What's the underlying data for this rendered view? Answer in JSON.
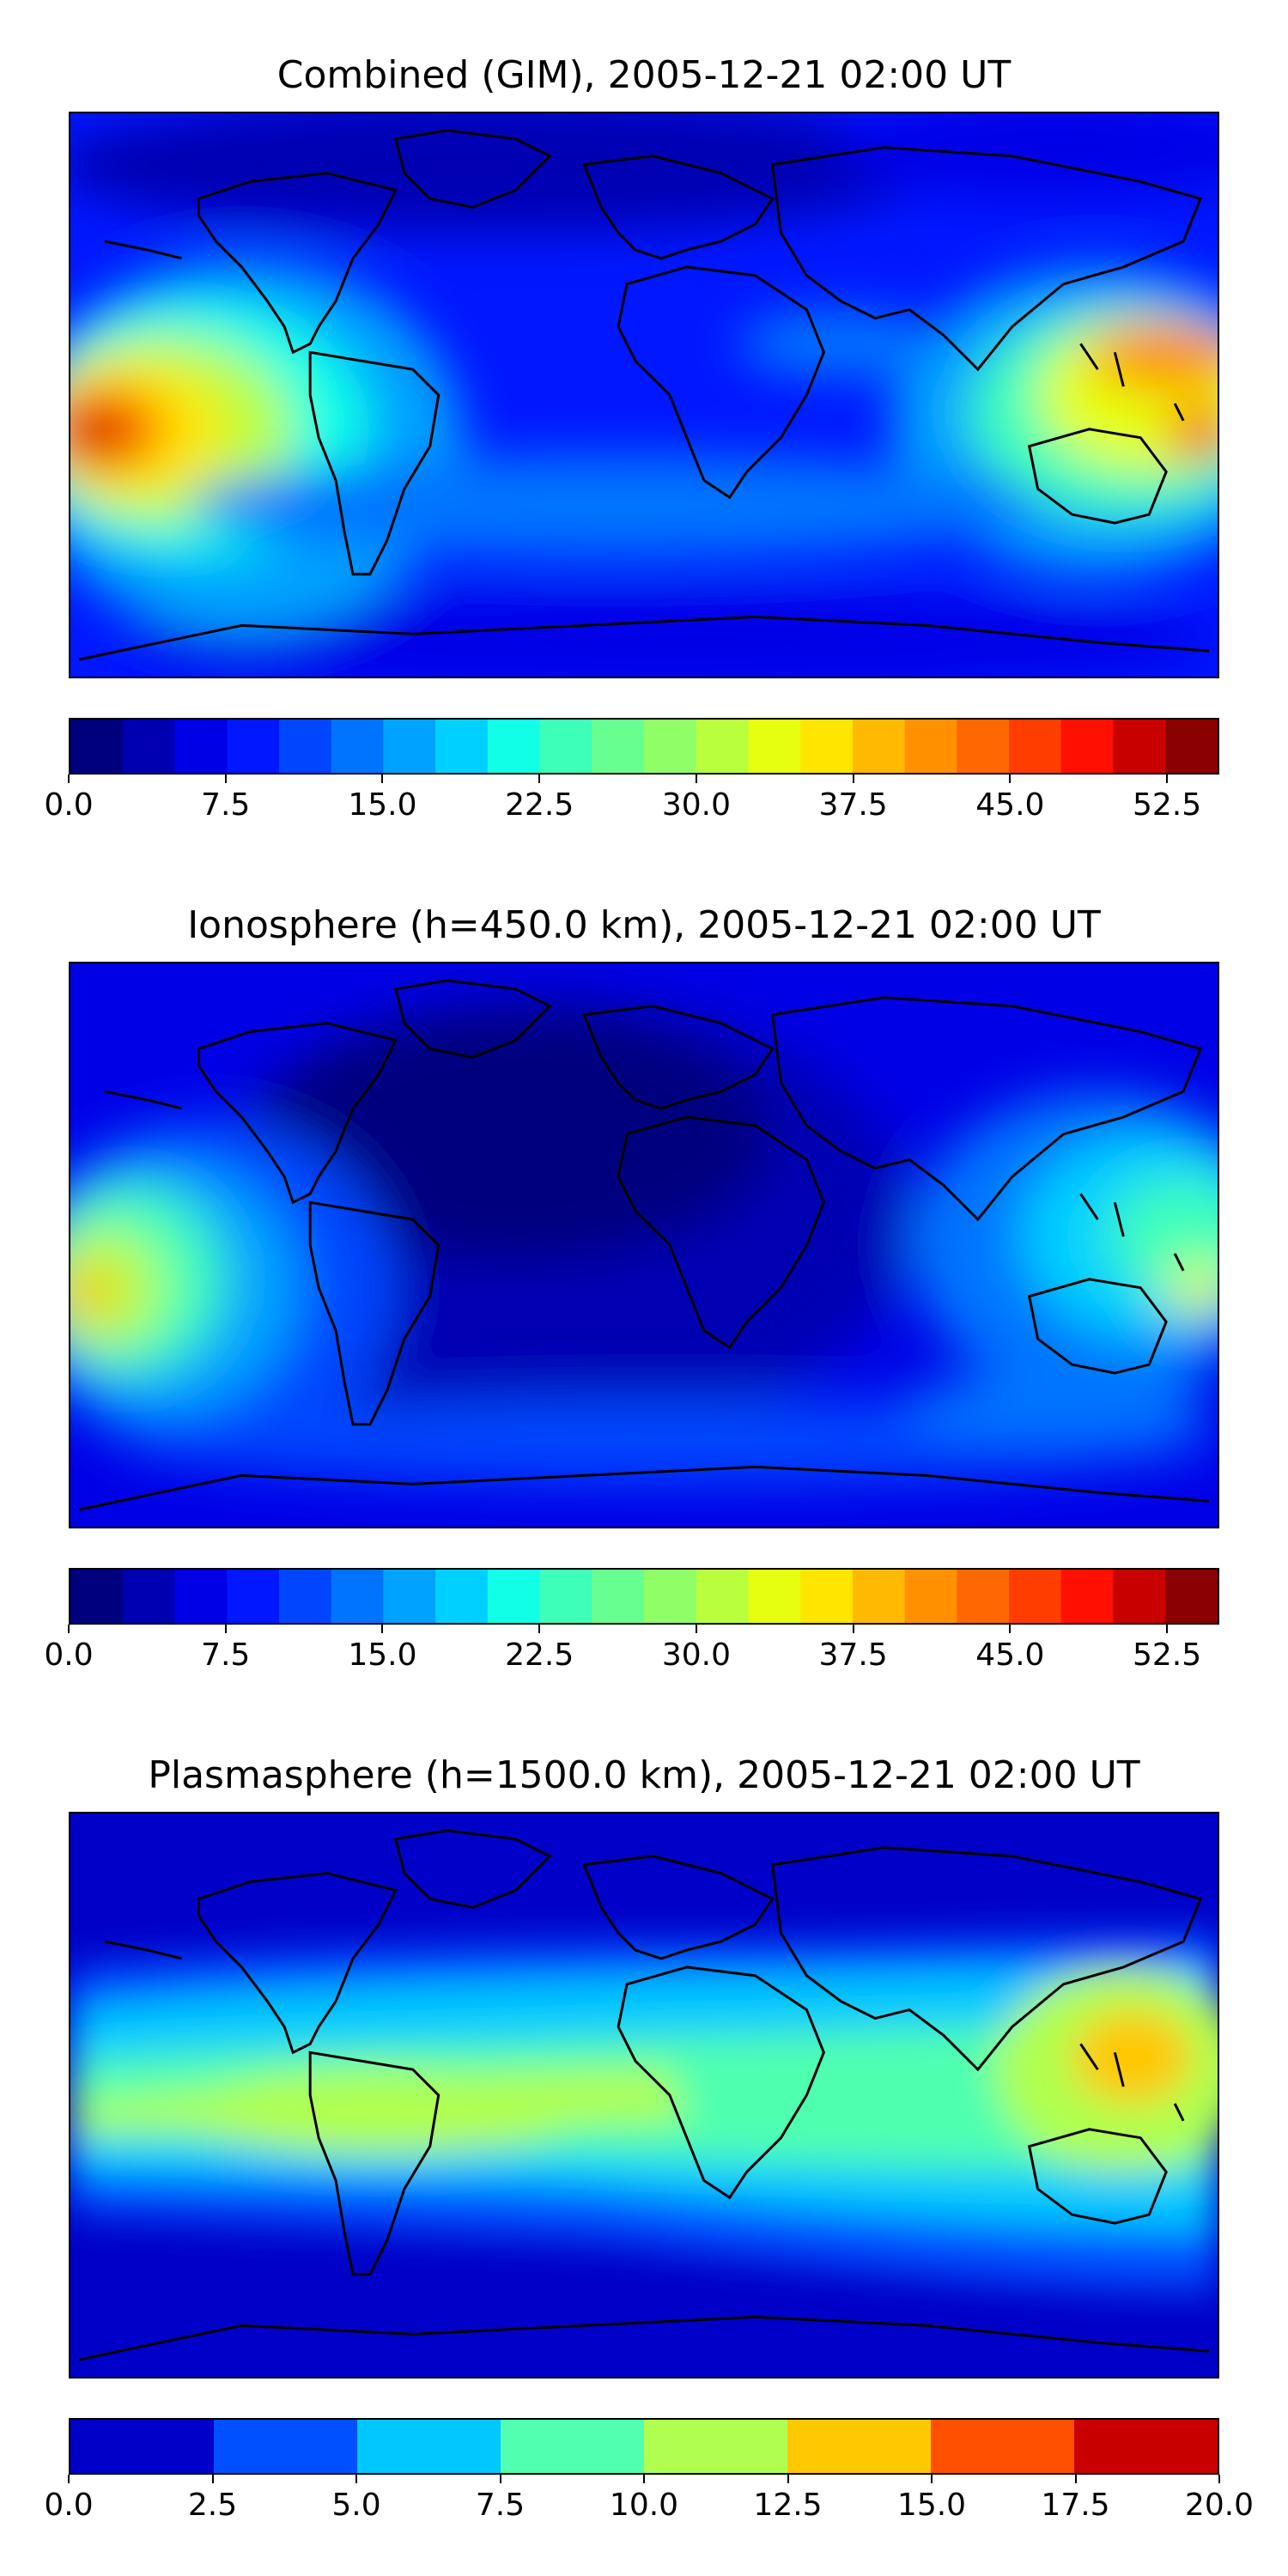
{
  "panels": [
    {
      "title": "Combined (GIM), 2005-12-21 02:00 UT",
      "colorbar": {
        "min": 0,
        "max": 55,
        "levels": 22,
        "ticks": [
          "0.0",
          "7.5",
          "15.0",
          "22.5",
          "30.0",
          "37.5",
          "45.0",
          "52.5"
        ],
        "tick_values": [
          0,
          7.5,
          15,
          22.5,
          30,
          37.5,
          45,
          52.5
        ],
        "colors": [
          "#00007f",
          "#0000b3",
          "#0000e6",
          "#0017ff",
          "#0046ff",
          "#0074ff",
          "#00a2ff",
          "#00d0ff",
          "#10ffe6",
          "#3dffb9",
          "#67ff90",
          "#90ff67",
          "#b9ff3d",
          "#e6ff10",
          "#ffe600",
          "#ffb900",
          "#ff9000",
          "#ff6700",
          "#ff3d00",
          "#ff1000",
          "#c80000",
          "#8b0000"
        ]
      }
    },
    {
      "title": "Ionosphere  (h=450.0 km), 2005-12-21 02:00 UT",
      "colorbar": {
        "min": 0,
        "max": 55,
        "levels": 22,
        "ticks": [
          "0.0",
          "7.5",
          "15.0",
          "22.5",
          "30.0",
          "37.5",
          "45.0",
          "52.5"
        ],
        "tick_values": [
          0,
          7.5,
          15,
          22.5,
          30,
          37.5,
          45,
          52.5
        ],
        "colors": [
          "#00007f",
          "#0000b3",
          "#0000e6",
          "#0017ff",
          "#0046ff",
          "#0074ff",
          "#00a2ff",
          "#00d0ff",
          "#10ffe6",
          "#3dffb9",
          "#67ff90",
          "#90ff67",
          "#b9ff3d",
          "#e6ff10",
          "#ffe600",
          "#ffb900",
          "#ff9000",
          "#ff6700",
          "#ff3d00",
          "#ff1000",
          "#c80000",
          "#8b0000"
        ]
      }
    },
    {
      "title": "Plasmasphere (h=1500.0 km), 2005-12-21 02:00 UT",
      "colorbar": {
        "min": 0,
        "max": 20,
        "levels": 8,
        "ticks": [
          "0.0",
          "2.5",
          "5.0",
          "7.5",
          "10.0",
          "12.5",
          "15.0",
          "17.5",
          "20.0"
        ],
        "tick_values": [
          0,
          2.5,
          5,
          7.5,
          10,
          12.5,
          15,
          17.5,
          20
        ],
        "colors": [
          "#0000c8",
          "#0050ff",
          "#00c8ff",
          "#50ffb0",
          "#b0ff50",
          "#ffc800",
          "#ff5000",
          "#c80000"
        ]
      }
    }
  ]
}
